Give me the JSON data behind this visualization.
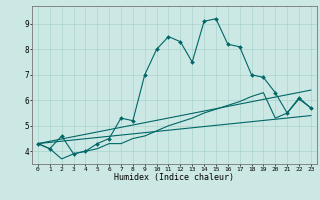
{
  "bg_color": "#cce8e4",
  "grid_color": "#aad4cc",
  "line_color": "#006666",
  "xlabel": "Humidex (Indice chaleur)",
  "xlim": [
    -0.5,
    23.5
  ],
  "ylim": [
    3.5,
    9.7
  ],
  "yticks": [
    4,
    5,
    6,
    7,
    8,
    9
  ],
  "xticks": [
    0,
    1,
    2,
    3,
    4,
    5,
    6,
    7,
    8,
    9,
    10,
    11,
    12,
    13,
    14,
    15,
    16,
    17,
    18,
    19,
    20,
    21,
    22,
    23
  ],
  "series1_x": [
    0,
    1,
    2,
    3,
    4,
    5,
    6,
    7,
    8,
    9,
    10,
    11,
    12,
    13,
    14,
    15,
    16,
    17,
    18,
    19,
    20,
    21,
    22,
    23
  ],
  "series1_y": [
    4.3,
    4.1,
    4.6,
    3.9,
    4.0,
    4.3,
    4.5,
    5.3,
    5.2,
    7.0,
    8.0,
    8.5,
    8.3,
    7.5,
    9.1,
    9.2,
    8.2,
    8.1,
    7.0,
    6.9,
    6.3,
    5.5,
    6.1,
    5.7
  ],
  "series2_x": [
    0,
    1,
    2,
    3,
    4,
    5,
    6,
    7,
    8,
    9,
    10,
    11,
    12,
    13,
    14,
    15,
    16,
    17,
    18,
    19,
    20,
    21,
    22,
    23
  ],
  "series2_y": [
    4.3,
    4.1,
    3.7,
    3.9,
    4.0,
    4.1,
    4.3,
    4.3,
    4.5,
    4.6,
    4.8,
    5.0,
    5.15,
    5.3,
    5.5,
    5.65,
    5.8,
    5.95,
    6.15,
    6.3,
    5.3,
    5.5,
    6.05,
    5.7
  ],
  "series3_x": [
    0,
    23
  ],
  "series3_y": [
    4.3,
    6.4
  ],
  "series4_x": [
    0,
    23
  ],
  "series4_y": [
    4.3,
    5.4
  ]
}
